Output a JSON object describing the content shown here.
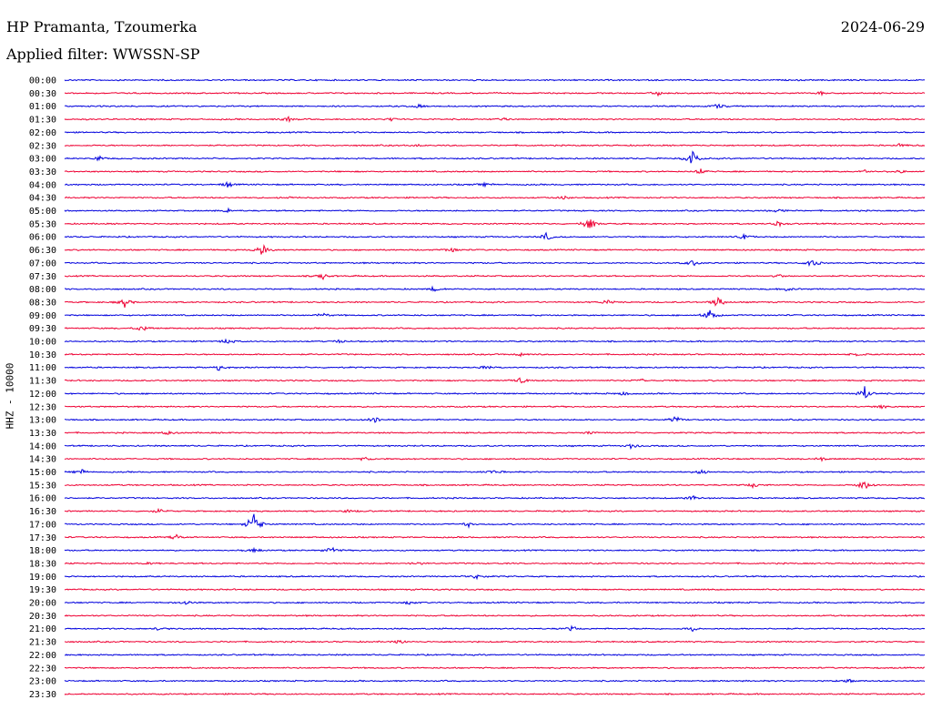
{
  "header": {
    "station": "HP Pramanta, Tzoumerka",
    "filter": "Applied filter: WWSSN-SP",
    "date": "2024-06-29"
  },
  "chart_data": {
    "type": "line",
    "ylabel": "HHZ - 10000",
    "colors": [
      "#0000dd",
      "#ee0033"
    ],
    "rows": [
      {
        "label": "00:00",
        "events": []
      },
      {
        "label": "00:30",
        "events": [
          [
            0.69,
            3
          ],
          [
            0.88,
            2
          ]
        ]
      },
      {
        "label": "01:00",
        "events": [
          [
            0.41,
            3
          ],
          [
            0.76,
            3
          ]
        ]
      },
      {
        "label": "01:30",
        "events": [
          [
            0.26,
            4
          ],
          [
            0.38,
            2
          ],
          [
            0.51,
            2
          ]
        ]
      },
      {
        "label": "02:00",
        "events": []
      },
      {
        "label": "02:30",
        "events": [
          [
            0.41,
            2
          ],
          [
            0.97,
            2
          ]
        ]
      },
      {
        "label": "03:00",
        "events": [
          [
            0.73,
            14
          ],
          [
            0.04,
            3
          ]
        ]
      },
      {
        "label": "03:30",
        "events": [
          [
            0.74,
            4
          ],
          [
            0.93,
            3
          ],
          [
            0.97,
            2
          ]
        ]
      },
      {
        "label": "04:00",
        "events": [
          [
            0.19,
            4
          ],
          [
            0.49,
            2
          ]
        ]
      },
      {
        "label": "04:30",
        "events": [
          [
            0.26,
            2
          ],
          [
            0.58,
            3
          ]
        ]
      },
      {
        "label": "05:00",
        "events": [
          [
            0.19,
            3
          ],
          [
            0.83,
            3
          ]
        ]
      },
      {
        "label": "05:30",
        "events": [
          [
            0.61,
            9
          ],
          [
            0.83,
            3
          ]
        ]
      },
      {
        "label": "06:00",
        "events": [
          [
            0.56,
            5
          ],
          [
            0.79,
            3
          ]
        ]
      },
      {
        "label": "06:30",
        "events": [
          [
            0.23,
            9
          ],
          [
            0.45,
            3
          ]
        ]
      },
      {
        "label": "07:00",
        "events": [
          [
            0.73,
            4
          ],
          [
            0.87,
            8
          ]
        ]
      },
      {
        "label": "07:30",
        "events": [
          [
            0.3,
            5
          ],
          [
            0.83,
            2
          ]
        ]
      },
      {
        "label": "08:00",
        "events": [
          [
            0.43,
            3
          ],
          [
            0.84,
            2
          ]
        ]
      },
      {
        "label": "08:30",
        "events": [
          [
            0.07,
            6
          ],
          [
            0.76,
            9
          ],
          [
            0.63,
            3
          ]
        ]
      },
      {
        "label": "09:00",
        "events": [
          [
            0.75,
            9
          ],
          [
            0.3,
            3
          ]
        ]
      },
      {
        "label": "09:30",
        "events": [
          [
            0.09,
            4
          ]
        ]
      },
      {
        "label": "10:00",
        "events": [
          [
            0.19,
            3
          ],
          [
            0.32,
            2
          ]
        ]
      },
      {
        "label": "10:30",
        "events": [
          [
            0.53,
            3
          ],
          [
            0.92,
            2
          ]
        ]
      },
      {
        "label": "11:00",
        "events": [
          [
            0.18,
            4
          ],
          [
            0.49,
            3
          ]
        ]
      },
      {
        "label": "11:30",
        "events": [
          [
            0.53,
            4
          ],
          [
            0.67,
            3
          ]
        ]
      },
      {
        "label": "12:00",
        "events": [
          [
            0.93,
            10
          ],
          [
            0.65,
            3
          ]
        ]
      },
      {
        "label": "12:30",
        "events": [
          [
            0.95,
            2
          ]
        ]
      },
      {
        "label": "13:00",
        "events": [
          [
            0.36,
            4
          ],
          [
            0.71,
            5
          ]
        ]
      },
      {
        "label": "13:30",
        "events": [
          [
            0.12,
            3
          ],
          [
            0.61,
            2
          ]
        ]
      },
      {
        "label": "14:00",
        "events": [
          [
            0.66,
            4
          ]
        ]
      },
      {
        "label": "14:30",
        "events": [
          [
            0.35,
            2
          ],
          [
            0.88,
            3
          ]
        ]
      },
      {
        "label": "15:00",
        "events": [
          [
            0.02,
            3
          ],
          [
            0.5,
            3
          ],
          [
            0.74,
            3
          ]
        ]
      },
      {
        "label": "15:30",
        "events": [
          [
            0.93,
            7
          ],
          [
            0.8,
            3
          ]
        ]
      },
      {
        "label": "16:00",
        "events": [
          [
            0.73,
            3
          ]
        ]
      },
      {
        "label": "16:30",
        "events": [
          [
            0.11,
            3
          ],
          [
            0.33,
            2
          ]
        ]
      },
      {
        "label": "17:00",
        "events": [
          [
            0.22,
            22
          ],
          [
            0.47,
            3
          ]
        ]
      },
      {
        "label": "17:30",
        "events": [
          [
            0.13,
            3
          ]
        ]
      },
      {
        "label": "18:00",
        "events": [
          [
            0.31,
            4
          ],
          [
            0.22,
            3
          ]
        ]
      },
      {
        "label": "18:30",
        "events": [
          [
            0.1,
            3
          ],
          [
            0.41,
            2
          ]
        ]
      },
      {
        "label": "19:00",
        "events": [
          [
            0.48,
            4
          ]
        ]
      },
      {
        "label": "19:30",
        "events": [
          [
            0.75,
            2
          ]
        ]
      },
      {
        "label": "20:00",
        "events": [
          [
            0.14,
            3
          ],
          [
            0.4,
            2
          ]
        ]
      },
      {
        "label": "20:30",
        "events": []
      },
      {
        "label": "21:00",
        "events": [
          [
            0.11,
            2
          ],
          [
            0.59,
            3
          ],
          [
            0.73,
            3
          ]
        ]
      },
      {
        "label": "21:30",
        "events": [
          [
            0.39,
            3
          ]
        ]
      },
      {
        "label": "22:00",
        "events": []
      },
      {
        "label": "22:30",
        "events": []
      },
      {
        "label": "23:00",
        "events": [
          [
            0.91,
            3
          ]
        ]
      },
      {
        "label": "23:30",
        "events": []
      }
    ]
  }
}
